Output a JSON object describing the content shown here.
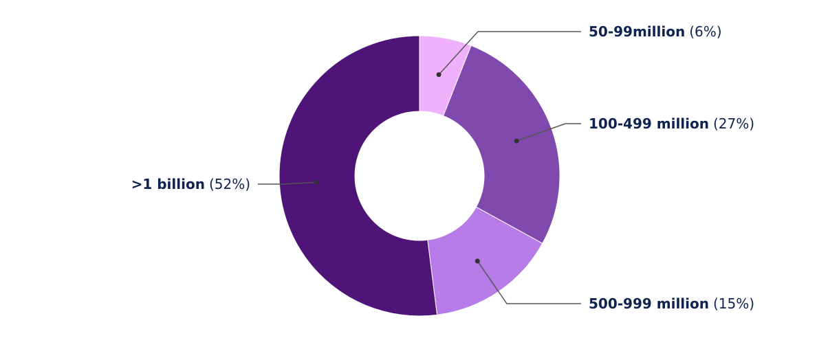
{
  "chart_data": {
    "type": "donut",
    "categories": [
      "50-99million",
      "100-499 million",
      "500-999 million",
      ">1 billion"
    ],
    "values": [
      6,
      27,
      15,
      52
    ],
    "value_labels": [
      "(6%)",
      "(27%)",
      "(15%)",
      "(52%)"
    ],
    "colors": [
      "#f0b1fc",
      "#7f49ad",
      "#b77ce8",
      "#4e1478"
    ]
  }
}
